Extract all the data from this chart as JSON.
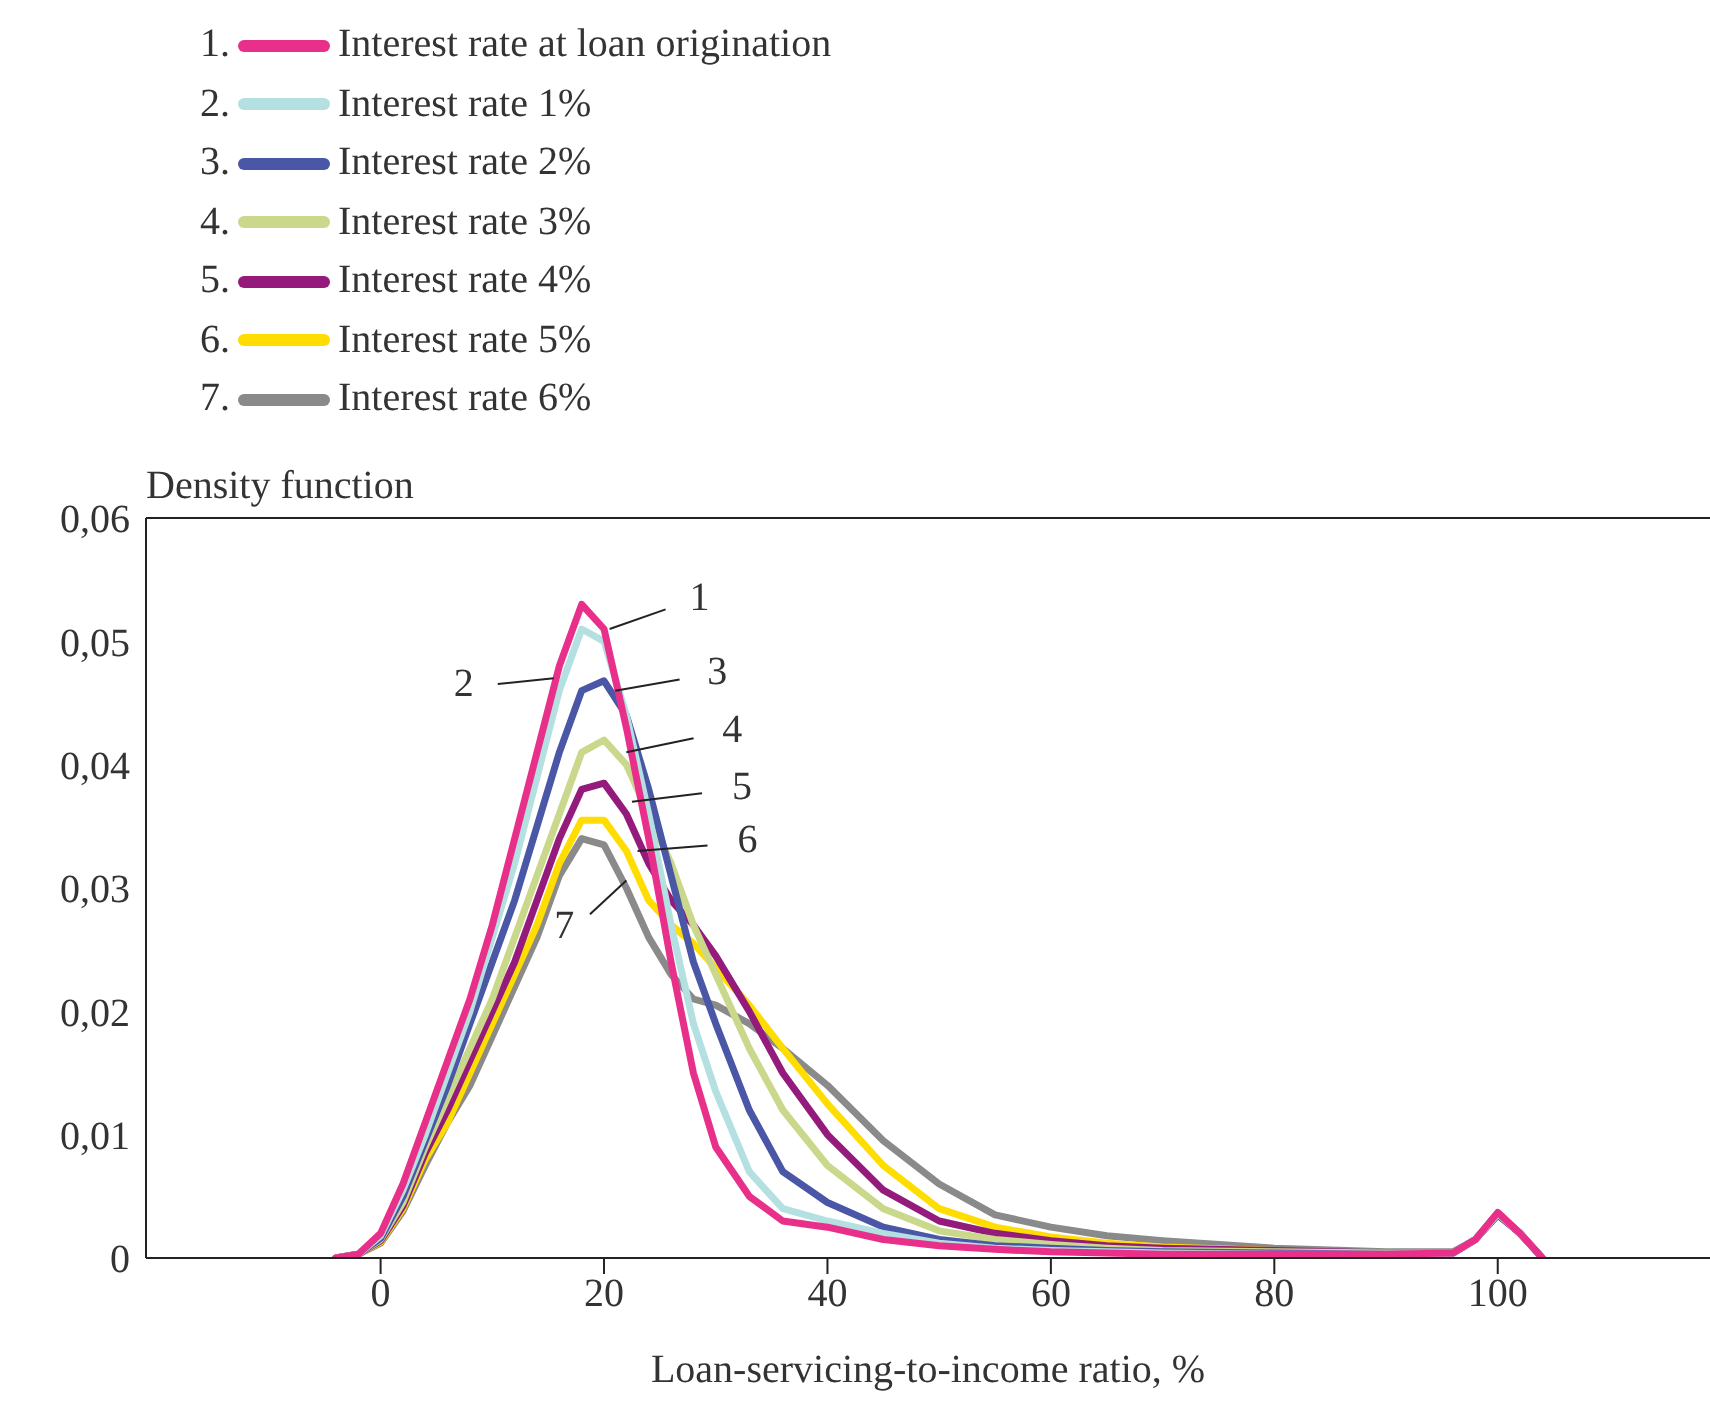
{
  "chart_data": {
    "type": "line",
    "xlabel": "Loan-servicing-to-income ratio, %",
    "ylabel": "Density function",
    "x": [
      -4,
      -2,
      0,
      2,
      4,
      6,
      8,
      10,
      12,
      14,
      16,
      18,
      20,
      22,
      24,
      26,
      28,
      30,
      33,
      36,
      40,
      45,
      50,
      55,
      60,
      65,
      70,
      80,
      90,
      96,
      98,
      100,
      102,
      104
    ],
    "series": [
      {
        "name": "Interest rate at loan origination",
        "color": "#e8308a",
        "values": [
          0,
          0.0003,
          0.002,
          0.006,
          0.011,
          0.016,
          0.021,
          0.027,
          0.034,
          0.041,
          0.048,
          0.053,
          0.051,
          0.043,
          0.034,
          0.024,
          0.015,
          0.009,
          0.005,
          0.003,
          0.0025,
          0.0015,
          0.001,
          0.0007,
          0.0005,
          0.0004,
          0.0003,
          0.0003,
          0.0003,
          0.0004,
          0.0015,
          0.0037,
          0.002,
          0
        ]
      },
      {
        "name": "Interest rate 1%",
        "color": "#b4e0e2",
        "values": [
          0,
          0.0003,
          0.0018,
          0.0055,
          0.01,
          0.015,
          0.02,
          0.026,
          0.032,
          0.039,
          0.046,
          0.051,
          0.05,
          0.044,
          0.036,
          0.027,
          0.019,
          0.0135,
          0.007,
          0.004,
          0.003,
          0.002,
          0.0012,
          0.0008,
          0.0006,
          0.0005,
          0.0004,
          0.0003,
          0.0003,
          0.0004,
          0.0015,
          0.0036,
          0.002,
          0
        ]
      },
      {
        "name": "Interest rate 2%",
        "color": "#4a56a6",
        "values": [
          0,
          0.0003,
          0.0016,
          0.005,
          0.0095,
          0.014,
          0.019,
          0.024,
          0.029,
          0.035,
          0.041,
          0.046,
          0.0468,
          0.044,
          0.038,
          0.031,
          0.024,
          0.019,
          0.012,
          0.007,
          0.0045,
          0.0025,
          0.0015,
          0.001,
          0.0008,
          0.0006,
          0.0005,
          0.0004,
          0.0003,
          0.0004,
          0.0015,
          0.0036,
          0.002,
          0
        ]
      },
      {
        "name": "Interest rate 3%",
        "color": "#c9d88a",
        "values": [
          0,
          0.0003,
          0.0015,
          0.0045,
          0.009,
          0.013,
          0.017,
          0.021,
          0.026,
          0.031,
          0.036,
          0.041,
          0.042,
          0.04,
          0.036,
          0.032,
          0.027,
          0.023,
          0.017,
          0.012,
          0.0075,
          0.004,
          0.0022,
          0.0015,
          0.0011,
          0.0008,
          0.0006,
          0.0005,
          0.0004,
          0.0004,
          0.0015,
          0.0036,
          null,
          null
        ]
      },
      {
        "name": "Interest rate 4%",
        "color": "#941a7c",
        "values": [
          0,
          0.0003,
          0.0014,
          0.0042,
          0.0085,
          0.012,
          0.016,
          0.02,
          0.024,
          0.029,
          0.034,
          0.038,
          0.0385,
          0.036,
          0.032,
          0.029,
          0.027,
          0.0245,
          0.02,
          0.015,
          0.01,
          0.0055,
          0.003,
          0.002,
          0.0014,
          0.001,
          0.0008,
          0.0006,
          0.0004,
          0.0004,
          0.0015,
          0.0035,
          0.002,
          0
        ]
      },
      {
        "name": "Interest rate 5%",
        "color": "#ffdd00",
        "values": [
          0,
          0.0003,
          0.0013,
          0.004,
          0.008,
          0.011,
          0.015,
          0.019,
          0.023,
          0.027,
          0.032,
          0.0355,
          0.0355,
          0.033,
          0.029,
          0.027,
          0.0255,
          0.0235,
          0.0205,
          0.017,
          0.0125,
          0.0075,
          0.004,
          0.0025,
          0.0017,
          0.0012,
          0.0009,
          0.0006,
          null,
          null,
          null,
          null,
          null,
          null
        ]
      },
      {
        "name": "Interest rate 6%",
        "color": "#8a8a8a",
        "values": [
          0,
          0.0003,
          0.0012,
          0.0038,
          0.0075,
          0.011,
          0.014,
          0.018,
          0.022,
          0.026,
          0.031,
          0.034,
          0.0335,
          0.03,
          0.026,
          0.023,
          0.021,
          0.0205,
          0.019,
          0.017,
          0.014,
          0.0095,
          0.006,
          0.0035,
          0.0025,
          0.0018,
          0.0014,
          0.0008,
          0.0005,
          0.0005,
          0.0015,
          0.0035,
          0.002,
          0
        ]
      }
    ],
    "annotations": [
      {
        "text": "1",
        "x": 20.5,
        "y": 0.051
      },
      {
        "text": "2",
        "x": 15.5,
        "y": 0.047
      },
      {
        "text": "3",
        "x": 21,
        "y": 0.046
      },
      {
        "text": "4",
        "x": 22,
        "y": 0.041
      },
      {
        "text": "5",
        "x": 22.5,
        "y": 0.037
      },
      {
        "text": "6",
        "x": 23,
        "y": 0.033
      },
      {
        "text": "7",
        "x": 22,
        "y": 0.0306
      },
      "1.",
      "2.",
      "3.",
      "4.",
      "5.",
      "6.",
      "7."
    ],
    "xlim": [
      -21,
      119
    ],
    "xticks": [
      0,
      20,
      40,
      60,
      80,
      100
    ],
    "ylim": [
      0,
      0.06
    ],
    "yticks": [
      0,
      {
        "value": 0.01,
        "label": "0,01"
      },
      {
        "value": 0.02,
        "label": "0,02"
      },
      {
        "value": 0.03,
        "label": "0,03"
      },
      {
        "value": 0.04,
        "label": "0,04"
      },
      {
        "value": 0.05,
        "label": "0,05"
      },
      {
        "value": 0.06,
        "label": "0,06"
      }
    ],
    "grid": false,
    "legend": "top left",
    "marker": "none",
    "line_style": "solid"
  }
}
